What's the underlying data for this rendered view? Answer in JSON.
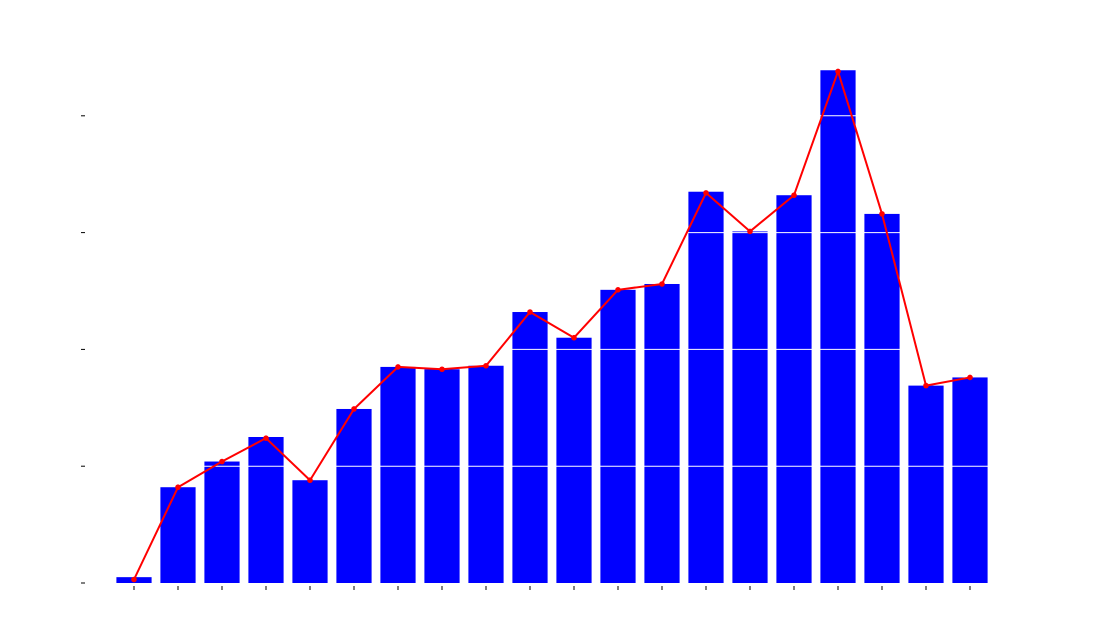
{
  "chart_data": {
    "type": "bar",
    "title": "",
    "xlabel": "",
    "ylabel": "",
    "categories": [
      "",
      "",
      "",
      "",
      "",
      "",
      "",
      "",
      "",
      "",
      "",
      "",
      "",
      "",
      "",
      "",
      "",
      "",
      "",
      ""
    ],
    "series": [
      {
        "type": "bar",
        "values": [
          0.05,
          0.82,
          1.04,
          1.25,
          0.88,
          1.49,
          1.85,
          1.83,
          1.86,
          2.32,
          2.1,
          2.51,
          2.56,
          3.35,
          3.01,
          3.32,
          4.39,
          3.16,
          1.69,
          1.76
        ]
      },
      {
        "type": "line",
        "values": [
          0.03,
          0.82,
          1.04,
          1.24,
          0.88,
          1.49,
          1.85,
          1.83,
          1.86,
          2.32,
          2.1,
          2.51,
          2.56,
          3.34,
          3.01,
          3.32,
          4.38,
          3.16,
          1.69,
          1.76
        ]
      }
    ],
    "ylim": [
      0,
      4.4
    ],
    "yticks": [
      0,
      1,
      2,
      3,
      4
    ],
    "grid": true,
    "legend": "none",
    "colors": {
      "bar": "#0000ff",
      "line": "#ff0000",
      "grid": "#ffffff",
      "tick": "#000000"
    }
  }
}
